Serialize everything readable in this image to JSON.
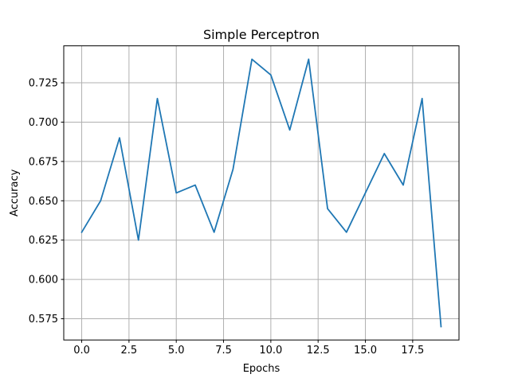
{
  "chart_data": {
    "type": "line",
    "title": "Simple Perceptron",
    "xlabel": "Epochs",
    "ylabel": "Accuracy",
    "xlim": [
      -0.95,
      19.95
    ],
    "ylim": [
      0.5615,
      0.7485
    ],
    "xticks": [
      0.0,
      2.5,
      5.0,
      7.5,
      10.0,
      12.5,
      15.0,
      17.5
    ],
    "xtick_labels": [
      "0.0",
      "2.5",
      "5.0",
      "7.5",
      "10.0",
      "12.5",
      "15.0",
      "17.5"
    ],
    "yticks": [
      0.575,
      0.6,
      0.625,
      0.65,
      0.675,
      0.7,
      0.725
    ],
    "ytick_labels": [
      "0.575",
      "0.600",
      "0.625",
      "0.650",
      "0.675",
      "0.700",
      "0.725"
    ],
    "grid": true,
    "series": [
      {
        "color": "#1f77b4",
        "x": [
          0,
          1,
          2,
          3,
          4,
          5,
          6,
          7,
          8,
          9,
          10,
          11,
          12,
          13,
          14,
          15,
          16,
          17,
          18,
          19
        ],
        "y": [
          0.63,
          0.65,
          0.69,
          0.625,
          0.715,
          0.655,
          0.66,
          0.63,
          0.67,
          0.74,
          0.73,
          0.695,
          0.74,
          0.645,
          0.63,
          0.655,
          0.68,
          0.66,
          0.715,
          0.57
        ]
      }
    ]
  }
}
